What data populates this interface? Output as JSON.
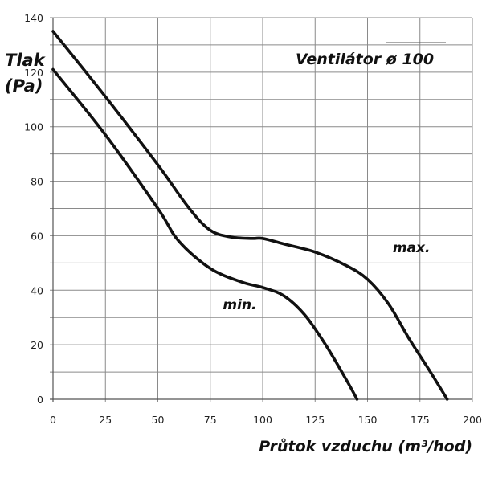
{
  "chart_data": {
    "type": "line",
    "title": "Ventilátor ø 100",
    "xlabel": "Průtok vzduchu (m³/hod)",
    "ylabel": "Tlak (Pa)",
    "ylabel_lines": [
      "Tlak",
      "(Pa)"
    ],
    "xlim": [
      0,
      200
    ],
    "ylim": [
      0,
      140
    ],
    "x_ticks": [
      0,
      25,
      50,
      75,
      100,
      125,
      150,
      175,
      200
    ],
    "y_ticks": [
      0,
      20,
      40,
      60,
      80,
      100,
      120,
      140
    ],
    "grid": true,
    "x_minor_step": 25,
    "y_minor_step": 10,
    "legend": "inline labels",
    "series": [
      {
        "name": "max.",
        "x": [
          0,
          25,
          50,
          65,
          75,
          85,
          95,
          100,
          110,
          125,
          140,
          150,
          160,
          170,
          180,
          188
        ],
        "values": [
          135,
          111,
          86,
          70,
          62,
          59.5,
          59,
          59,
          57,
          54,
          49,
          44,
          35,
          22,
          10,
          0
        ],
        "label_pos": [
          162,
          54
        ]
      },
      {
        "name": "min.",
        "x": [
          0,
          25,
          50,
          60,
          75,
          90,
          100,
          110,
          120,
          130,
          140,
          145
        ],
        "values": [
          121,
          97,
          70,
          58,
          48,
          43,
          41,
          38,
          31,
          20,
          7,
          0
        ],
        "label_pos": [
          81,
          33
        ]
      }
    ]
  }
}
